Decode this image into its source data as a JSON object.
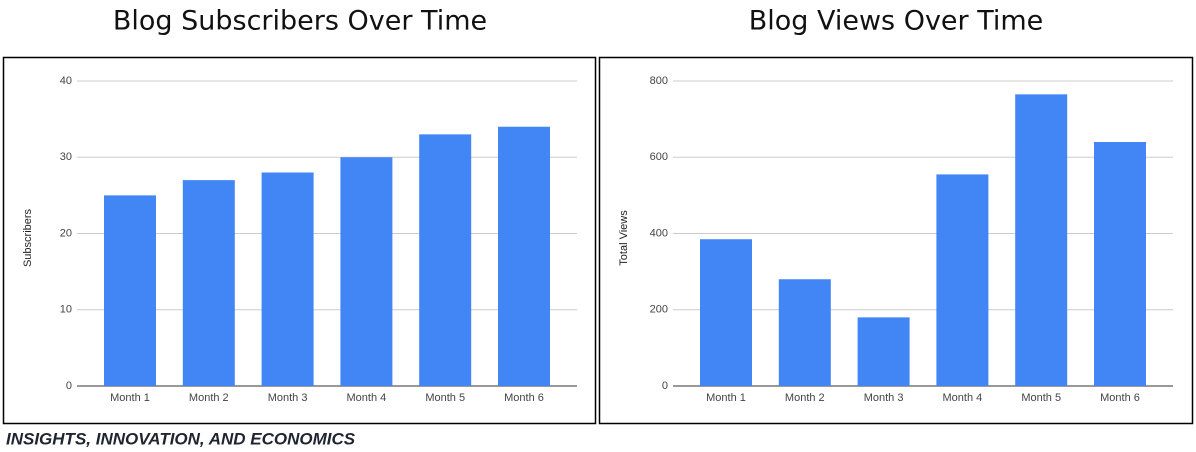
{
  "chart_data": [
    {
      "type": "bar",
      "title": "Blog Subscribers Over Time",
      "y_label": "Subscribers",
      "categories": [
        "Month 1",
        "Month 2",
        "Month 3",
        "Month 4",
        "Month 5",
        "Month 6"
      ],
      "values": [
        25,
        27,
        28,
        30,
        33,
        34
      ],
      "color": "#4285f4",
      "ylim": [
        0,
        40
      ],
      "yticks": [
        0,
        10,
        20,
        30,
        40
      ],
      "grid": true
    },
    {
      "type": "bar",
      "title": "Blog Views Over Time",
      "y_label": "Total Views",
      "categories": [
        "Month 1",
        "Month 2",
        "Month 3",
        "Month 4",
        "Month 5",
        "Month 6"
      ],
      "values": [
        385,
        280,
        180,
        555,
        765,
        640
      ],
      "color": "#4285f4",
      "ylim": [
        0,
        800
      ],
      "yticks": [
        0,
        200,
        400,
        600,
        800
      ],
      "grid": true
    }
  ],
  "footer": "INSIGHTS, INNOVATION, AND ECONOMICS"
}
